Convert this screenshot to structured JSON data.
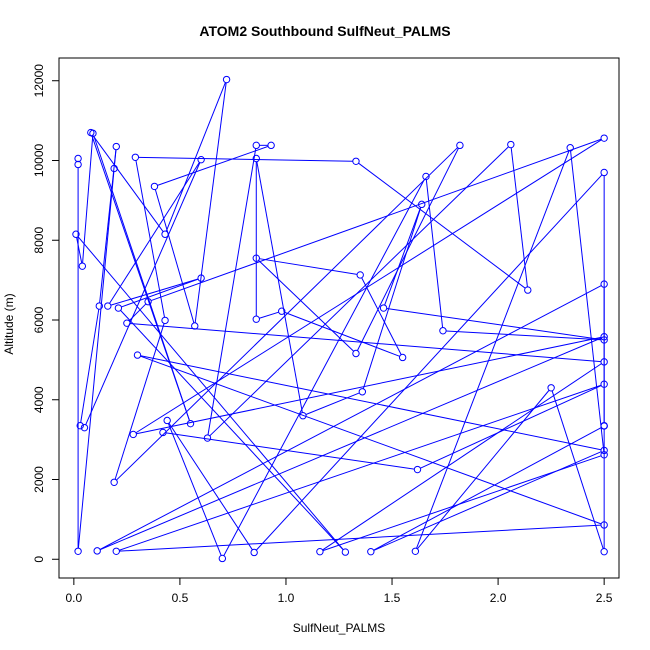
{
  "chart_data": {
    "type": "line",
    "title": "ATOM2 Southbound SulfNeut_PALMS",
    "xlabel": "SulfNeut_PALMS",
    "ylabel": "Altitude (m)",
    "xlim": [
      -0.07,
      2.57
    ],
    "ylim": [
      -470,
      12570
    ],
    "x_ticks": [
      0.0,
      0.5,
      1.0,
      1.5,
      2.0,
      2.5
    ],
    "x_tick_labels": [
      "0.0",
      "0.5",
      "1.0",
      "1.5",
      "2.0",
      "2.5"
    ],
    "y_ticks": [
      0,
      2000,
      4000,
      6000,
      8000,
      10000,
      12000
    ],
    "y_tick_labels": [
      "0",
      "2000",
      "4000",
      "6000",
      "8000",
      "10000",
      "12000"
    ],
    "grid": false,
    "legend": "none",
    "series": [
      {
        "color": "#0000ff",
        "marker": "open-circle",
        "points": [
          [
            0.02,
            10050
          ],
          [
            0.02,
            9900
          ],
          [
            0.02,
            200
          ],
          [
            0.19,
            9800
          ],
          [
            0.2,
            10350
          ],
          [
            0.12,
            6350
          ],
          [
            0.03,
            3350
          ],
          [
            0.05,
            3300
          ],
          [
            0.6,
            10020
          ],
          [
            0.16,
            6350
          ],
          [
            0.6,
            7050
          ],
          [
            0.21,
            6300
          ],
          [
            1.28,
            180
          ],
          [
            0.01,
            8150
          ],
          [
            0.04,
            7350
          ],
          [
            0.09,
            10680
          ],
          [
            0.55,
            3400
          ],
          [
            0.08,
            10700
          ],
          [
            0.43,
            8150
          ],
          [
            0.72,
            12030
          ],
          [
            0.57,
            5850
          ],
          [
            0.38,
            9350
          ],
          [
            0.93,
            10380
          ],
          [
            0.86,
            10380
          ],
          [
            0.63,
            3040
          ],
          [
            2.06,
            10400
          ],
          [
            2.14,
            6750
          ],
          [
            1.33,
            9980
          ],
          [
            0.29,
            10080
          ],
          [
            0.43,
            5990
          ],
          [
            0.19,
            1930
          ],
          [
            1.82,
            10380
          ],
          [
            1.33,
            5160
          ],
          [
            0.86,
            7550
          ],
          [
            1.35,
            7130
          ],
          [
            1.55,
            5060
          ],
          [
            0.98,
            6220
          ],
          [
            0.86,
            6020
          ],
          [
            0.86,
            10050
          ],
          [
            1.08,
            3600
          ],
          [
            1.36,
            4200
          ],
          [
            1.64,
            8900
          ],
          [
            1.46,
            6300
          ],
          [
            2.5,
            5500
          ],
          [
            1.74,
            5730
          ],
          [
            1.66,
            9600
          ],
          [
            0.7,
            20
          ],
          [
            0.44,
            3480
          ],
          [
            0.85,
            170
          ],
          [
            2.5,
            9700
          ],
          [
            2.5,
            3350
          ],
          [
            2.5,
            6900
          ],
          [
            0.11,
            210
          ],
          [
            2.5,
            5580
          ],
          [
            0.28,
            3130
          ],
          [
            2.5,
            10560
          ],
          [
            0.35,
            6460
          ],
          [
            0.25,
            5920
          ],
          [
            2.5,
            4950
          ],
          [
            1.16,
            190
          ],
          [
            2.5,
            2620
          ],
          [
            2.34,
            10320
          ],
          [
            1.61,
            200
          ],
          [
            2.25,
            4300
          ],
          [
            2.5,
            190
          ],
          [
            2.5,
            3340
          ],
          [
            1.4,
            190
          ],
          [
            2.5,
            2730
          ],
          [
            0.3,
            5120
          ],
          [
            2.5,
            860
          ],
          [
            0.2,
            200
          ],
          [
            2.5,
            4390
          ],
          [
            1.62,
            2250
          ],
          [
            0.42,
            3180
          ]
        ]
      }
    ]
  }
}
